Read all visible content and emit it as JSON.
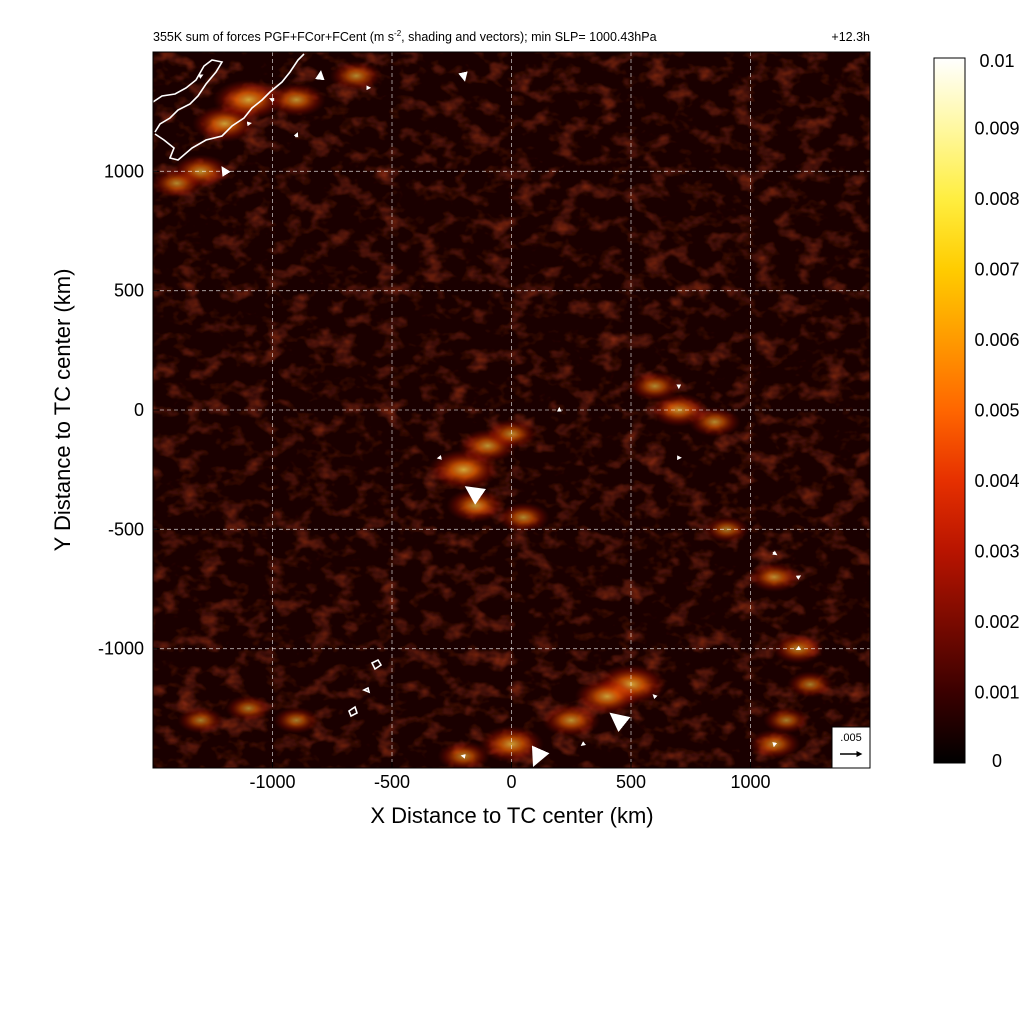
{
  "chart_data": {
    "type": "heatmap",
    "title": "355K sum of forces PGF+FCor+FCent (m s⁻², shading and vectors); min SLP= 1000.43hPa",
    "title_main": "355K sum of forces PGF+FCor+FCent (m s",
    "title_sup": "-2",
    "title_rest": ", shading and vectors); min SLP= 1000.43hPa",
    "time_label": "+12.3h",
    "xlabel": "X Distance to TC center (km)",
    "ylabel": "Y Distance to TC center (km)",
    "xlim": [
      -1500,
      1500
    ],
    "ylim": [
      -1500,
      1500
    ],
    "xticks": [
      -1000,
      -500,
      0,
      500,
      1000
    ],
    "yticks": [
      -1000,
      -500,
      0,
      500,
      1000
    ],
    "grid": true,
    "colorbar": {
      "min": 0,
      "max": 0.01,
      "tick_labels": [
        "0.01",
        "0.009",
        "0.008",
        "0.007",
        "0.006",
        "0.005",
        "0.004",
        "0.003",
        "0.002",
        "0.001",
        "0"
      ],
      "tick_values": [
        0.01,
        0.009,
        0.008,
        0.007,
        0.006,
        0.005,
        0.004,
        0.003,
        0.002,
        0.001,
        0
      ],
      "colors": [
        "#000000",
        "#3a0000",
        "#7a0a00",
        "#b81400",
        "#e63000",
        "#ff6600",
        "#ff9a00",
        "#ffcc00",
        "#ffee40",
        "#fff8a0",
        "#ffffff"
      ]
    },
    "reference_vector": {
      "label": ".005",
      "magnitude": 0.005
    },
    "hotspots": [
      {
        "x": -1200,
        "y": 1200,
        "v": 0.006
      },
      {
        "x": -1100,
        "y": 1300,
        "v": 0.007
      },
      {
        "x": -1300,
        "y": 1000,
        "v": 0.005
      },
      {
        "x": -1400,
        "y": 950,
        "v": 0.004
      },
      {
        "x": -900,
        "y": 1300,
        "v": 0.005
      },
      {
        "x": -650,
        "y": 1400,
        "v": 0.004
      },
      {
        "x": -200,
        "y": -250,
        "v": 0.007
      },
      {
        "x": -100,
        "y": -150,
        "v": 0.005
      },
      {
        "x": 0,
        "y": -100,
        "v": 0.004
      },
      {
        "x": -150,
        "y": -400,
        "v": 0.005
      },
      {
        "x": 50,
        "y": -450,
        "v": 0.004
      },
      {
        "x": 700,
        "y": 0,
        "v": 0.005
      },
      {
        "x": 600,
        "y": 100,
        "v": 0.004
      },
      {
        "x": 850,
        "y": -50,
        "v": 0.004
      },
      {
        "x": 500,
        "y": -1150,
        "v": 0.007
      },
      {
        "x": 400,
        "y": -1200,
        "v": 0.006
      },
      {
        "x": 250,
        "y": -1300,
        "v": 0.005
      },
      {
        "x": 0,
        "y": -1400,
        "v": 0.006
      },
      {
        "x": -200,
        "y": -1450,
        "v": 0.004
      },
      {
        "x": 1100,
        "y": -700,
        "v": 0.004
      },
      {
        "x": 1200,
        "y": -1000,
        "v": 0.004
      },
      {
        "x": 1150,
        "y": -1300,
        "v": 0.003
      },
      {
        "x": 1100,
        "y": -1400,
        "v": 0.004
      },
      {
        "x": -1300,
        "y": -1300,
        "v": 0.003
      },
      {
        "x": -1100,
        "y": -1250,
        "v": 0.003
      },
      {
        "x": -900,
        "y": -1300,
        "v": 0.003
      },
      {
        "x": 900,
        "y": -500,
        "v": 0.003
      },
      {
        "x": 1250,
        "y": -1150,
        "v": 0.003
      }
    ],
    "vectors": [
      {
        "x": -150,
        "y": -350,
        "u": -0.0019,
        "v": 0.0013,
        "n": "Wc"
      },
      {
        "x": 450,
        "y": -1300,
        "u": -0.0015,
        "v": 0.0012,
        "n": "Ws"
      },
      {
        "x": 110,
        "y": -1450,
        "u": -0.0007,
        "v": -0.0016,
        "n": "Ws2"
      },
      {
        "x": -200,
        "y": 1400,
        "u": 0.0002,
        "v": -0.0009,
        "n": "Nn"
      },
      {
        "x": -1200,
        "y": 1000,
        "u": -0.0005,
        "v": 0.0008,
        "n": "NWa"
      },
      {
        "x": -900,
        "y": 1150,
        "u": 0.0003,
        "v": 0.0007,
        "n": "NWb"
      },
      {
        "x": -800,
        "y": 1400,
        "u": 0.0001,
        "v": 0.0008,
        "n": "NWc"
      },
      {
        "x": -1000,
        "y": 1300,
        "u": -0.0007,
        "v": 0.0003,
        "n": "NWd"
      },
      {
        "x": 200,
        "y": 0,
        "u": 0.0,
        "v": 0.0005,
        "n": "Ca"
      },
      {
        "x": -300,
        "y": -200,
        "u": -0.0005,
        "v": -0.0001,
        "n": "Cb"
      },
      {
        "x": 1100,
        "y": -600,
        "u": 0.0006,
        "v": -0.0004,
        "n": "Ea"
      },
      {
        "x": 1200,
        "y": -700,
        "u": 0.0005,
        "v": 0.0003,
        "n": "Eb"
      },
      {
        "x": 700,
        "y": -200,
        "u": 0.0005,
        "v": 0.0,
        "n": "Ec"
      },
      {
        "x": 700,
        "y": 100,
        "u": 0.0,
        "v": -0.0005,
        "n": "Ed"
      },
      {
        "x": 1200,
        "y": -1000,
        "u": -0.0004,
        "v": -0.0002,
        "n": "Ee"
      },
      {
        "x": 1100,
        "y": -1400,
        "u": -0.0001,
        "v": -0.0005,
        "n": "Ef"
      },
      {
        "x": 300,
        "y": -1400,
        "u": -0.0004,
        "v": -0.0003,
        "n": "Sa"
      },
      {
        "x": -200,
        "y": -1450,
        "u": -0.0005,
        "v": 0.0001,
        "n": "Sb"
      },
      {
        "x": 600,
        "y": -1200,
        "u": -0.0004,
        "v": 0.0004,
        "n": "Sc"
      },
      {
        "x": -1100,
        "y": 1200,
        "u": 0.0006,
        "v": 0.0001,
        "n": "NWe"
      },
      {
        "x": -600,
        "y": 1350,
        "u": 0.0005,
        "v": 0.0,
        "n": "NWf"
      },
      {
        "x": -1300,
        "y": 1400,
        "u": 0.0004,
        "v": 0.0002,
        "n": "NWg"
      }
    ],
    "annotation": "white coastline outlines (upper-left corner and small islands near x=-550 km)"
  }
}
